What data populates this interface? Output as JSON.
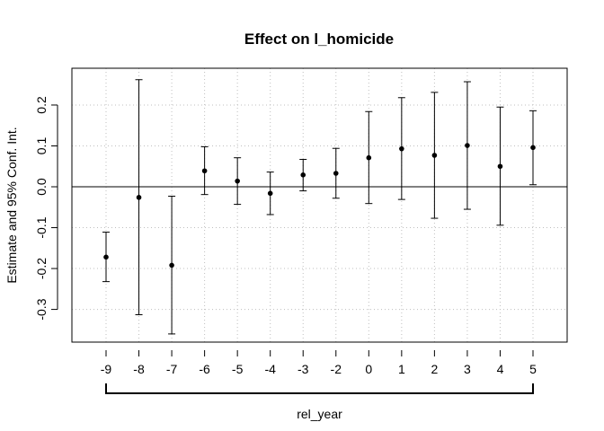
{
  "chart_data": {
    "type": "scatter",
    "title": "Effect on l_homicide",
    "xlabel": "rel_year",
    "ylabel": "Estimate and 95% Conf. Int.",
    "categories": [
      "-9",
      "-8",
      "-7",
      "-6",
      "-5",
      "-4",
      "-3",
      "-2",
      "0",
      "1",
      "2",
      "3",
      "4",
      "5"
    ],
    "estimate": [
      -0.172,
      -0.026,
      -0.192,
      0.039,
      0.014,
      -0.016,
      0.029,
      0.033,
      0.071,
      0.093,
      0.077,
      0.101,
      0.05,
      0.096
    ],
    "ci_lower": [
      -0.232,
      -0.313,
      -0.36,
      -0.019,
      -0.043,
      -0.068,
      -0.01,
      -0.028,
      -0.041,
      -0.031,
      -0.077,
      -0.055,
      -0.094,
      0.005
    ],
    "ci_upper": [
      -0.111,
      0.262,
      -0.023,
      0.098,
      0.071,
      0.036,
      0.067,
      0.094,
      0.184,
      0.218,
      0.231,
      0.257,
      0.195,
      0.186
    ],
    "yticks": [
      -0.3,
      -0.2,
      -0.1,
      0.0,
      0.1,
      0.2
    ],
    "ytick_labels": [
      "-0.3",
      "-0.2",
      "-0.1",
      "0.0",
      "0.1",
      "0.2"
    ],
    "ylim": [
      -0.38,
      0.29
    ],
    "reference_line": 0,
    "grid": true,
    "colors": {
      "points": "#000000",
      "grid": "#bfbfbf"
    }
  }
}
